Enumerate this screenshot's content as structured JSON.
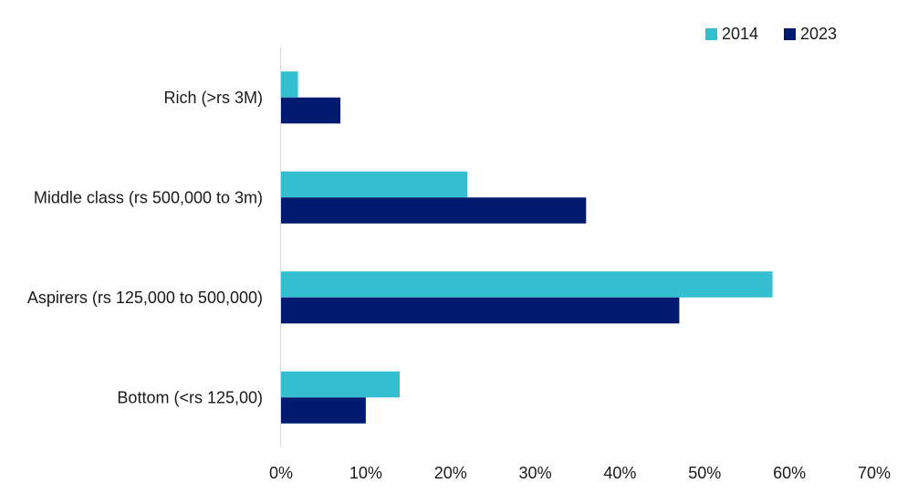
{
  "colors": {
    "series_2014": "#33bfd0",
    "series_2023": "#001a70",
    "axis": "#d9d9d9",
    "text": "#1a1a1a"
  },
  "chart_data": {
    "type": "bar",
    "orientation": "horizontal",
    "title": "",
    "xlabel": "",
    "ylabel": "",
    "categories": [
      "Rich (>rs 3M)",
      "Middle class (rs 500,000 to 3m)",
      "Aspirers (rs 125,000 to 500,000)",
      "Bottom (<rs 125,00)"
    ],
    "series": [
      {
        "name": "2014",
        "values": [
          2,
          22,
          58,
          14
        ]
      },
      {
        "name": "2023",
        "values": [
          7,
          36,
          47,
          10
        ]
      }
    ],
    "xlim": [
      0,
      70
    ],
    "xticks": [
      "0%",
      "10%",
      "20%",
      "30%",
      "40%",
      "50%",
      "60%",
      "70%"
    ],
    "grid": false,
    "legend_position": "top-right"
  }
}
